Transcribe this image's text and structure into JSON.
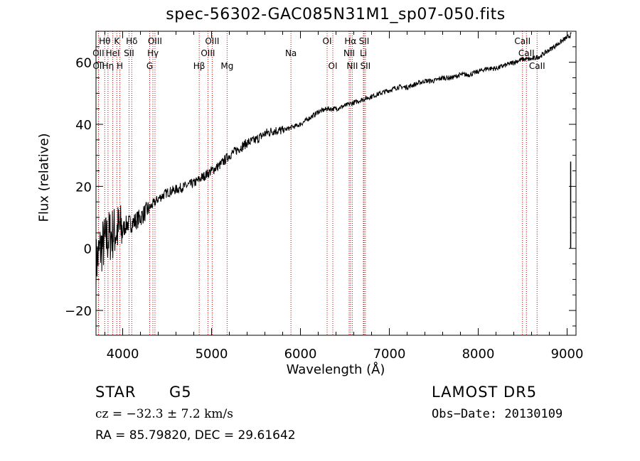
{
  "chart_data": {
    "type": "line",
    "title": "spec-56302-GAC085N31M1_sp07-050.fits",
    "xlabel": "Wavelength (Å)",
    "ylabel": "Flux (relative)",
    "xlim": [
      3700,
      9100
    ],
    "ylim": [
      -28,
      70
    ],
    "xticks": [
      4000,
      5000,
      6000,
      7000,
      8000,
      9000
    ],
    "yticks": [
      -20,
      0,
      20,
      40,
      60
    ],
    "grid": false,
    "series": [
      {
        "x": [
          3700,
          3750,
          3800,
          3850,
          3900,
          3950,
          4000,
          4050,
          4100,
          4150,
          4200,
          4300,
          4400,
          4500,
          4600,
          4700,
          4800,
          4900,
          5000,
          5100,
          5200,
          5300,
          5400,
          5500,
          5600,
          5700,
          5800,
          5900,
          6000,
          6100,
          6200,
          6300,
          6400,
          6500,
          6600,
          6700,
          6800,
          6900,
          7000,
          7100,
          7200,
          7300,
          7400,
          7500,
          7600,
          7700,
          7800,
          7900,
          8000,
          8100,
          8200,
          8300,
          8400,
          8500,
          8600,
          8700,
          8800,
          8900,
          9000,
          9050
        ],
        "y": [
          -5,
          0,
          2,
          4,
          5,
          6,
          6,
          8,
          8,
          9,
          10,
          13,
          16,
          18,
          19,
          20,
          21,
          23,
          25,
          27,
          30,
          32,
          34,
          35,
          37,
          38,
          38,
          39,
          40,
          42,
          44,
          45,
          45,
          46,
          47,
          48,
          49,
          50,
          51,
          52,
          52,
          53,
          54,
          54,
          55,
          55,
          56,
          56,
          57,
          58,
          58,
          59,
          60,
          61,
          61,
          62,
          64,
          66,
          68,
          69
        ]
      }
    ],
    "spectral_lines": [
      {
        "label": "Hθ",
        "wavelength": 3798,
        "row": 1
      },
      {
        "label": "K",
        "wavelength": 3934,
        "row": 1
      },
      {
        "label": "Hδ",
        "wavelength": 4102,
        "row": 1
      },
      {
        "label": "OIII",
        "wavelength": 4363,
        "row": 1
      },
      {
        "label": "OIII",
        "wavelength": 5007,
        "row": 1
      },
      {
        "label": "OI",
        "wavelength": 6300,
        "row": 1
      },
      {
        "label": "Hα",
        "wavelength": 6563,
        "row": 1
      },
      {
        "label": "SII",
        "wavelength": 6716,
        "row": 1
      },
      {
        "label": "CaII",
        "wavelength": 8498,
        "row": 1
      },
      {
        "label": "OII",
        "wavelength": 3727,
        "row": 2
      },
      {
        "label": "HeI",
        "wavelength": 3889,
        "row": 2
      },
      {
        "label": "SII",
        "wavelength": 4072,
        "row": 2
      },
      {
        "label": "Hγ",
        "wavelength": 4340,
        "row": 2
      },
      {
        "label": "OIII",
        "wavelength": 4959,
        "row": 2
      },
      {
        "label": "Na",
        "wavelength": 5893,
        "row": 2
      },
      {
        "label": "NII",
        "wavelength": 6548,
        "row": 2
      },
      {
        "label": "Li",
        "wavelength": 6708,
        "row": 2
      },
      {
        "label": "CaII",
        "wavelength": 8542,
        "row": 2
      },
      {
        "label": "OII",
        "wavelength": 3729,
        "row": 3
      },
      {
        "label": "Hη",
        "wavelength": 3835,
        "row": 3
      },
      {
        "label": "H",
        "wavelength": 3968,
        "row": 3
      },
      {
        "label": "G",
        "wavelength": 4304,
        "row": 3
      },
      {
        "label": "Hβ",
        "wavelength": 4861,
        "row": 3
      },
      {
        "label": "Mg",
        "wavelength": 5175,
        "row": 3
      },
      {
        "label": "OI",
        "wavelength": 6364,
        "row": 3
      },
      {
        "label": "NII",
        "wavelength": 6583,
        "row": 3
      },
      {
        "label": "SII",
        "wavelength": 6731,
        "row": 3
      },
      {
        "label": "CaII",
        "wavelength": 8662,
        "row": 3
      }
    ]
  },
  "footer": {
    "object_class": "STAR",
    "subclass": "G5",
    "survey": "LAMOST DR5",
    "redshift": "cz = −32.3 ± 7.2 km/s",
    "obs_date": "Obs−Date: 20130109",
    "coords": "RA =  85.79820, DEC =  29.61642"
  }
}
